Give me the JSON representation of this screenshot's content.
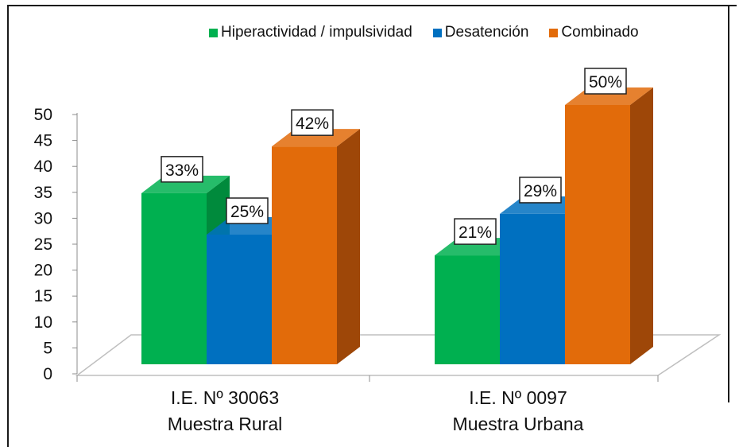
{
  "chart_data": {
    "type": "bar",
    "categories": [
      [
        "I.E. Nº 30063",
        "Muestra Rural"
      ],
      [
        "I.E. Nº 0097",
        "Muestra Urbana"
      ]
    ],
    "series": [
      {
        "name": "Hiperactividad / impulsividad",
        "values": [
          33,
          21
        ],
        "labels": [
          "33%",
          "21%"
        ],
        "color": "#00b050",
        "side": "#008a3c"
      },
      {
        "name": "Desatención",
        "values": [
          25,
          29
        ],
        "labels": [
          "25%",
          "29%"
        ],
        "color": "#0070c0",
        "side": "#004f8c"
      },
      {
        "name": "Combinado",
        "values": [
          42,
          50
        ],
        "labels": [
          "42%",
          "50%"
        ],
        "color": "#e26b0a",
        "side": "#9e4708"
      }
    ],
    "yticks": [
      "0",
      "5",
      "10",
      "15",
      "20",
      "25",
      "30",
      "35",
      "40",
      "45",
      "50"
    ],
    "ylim": [
      0,
      50
    ],
    "legend_position": "top-right",
    "grid": false
  }
}
